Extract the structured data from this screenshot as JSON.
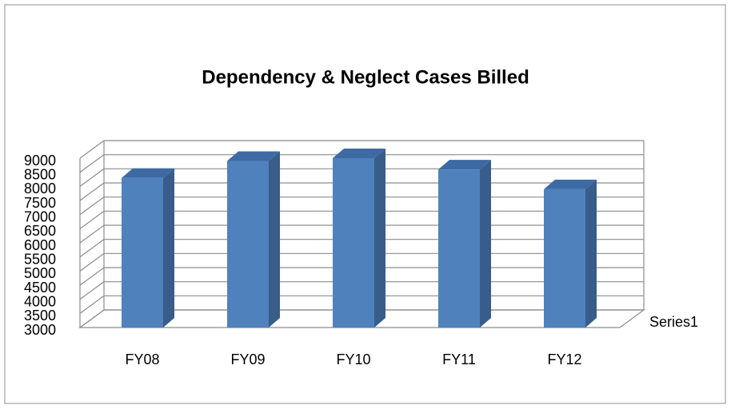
{
  "chart_data": {
    "type": "bar3d",
    "title": "Dependency & Neglect Cases Billed",
    "categories": [
      "FY08",
      "FY09",
      "FY10",
      "FY11",
      "FY12"
    ],
    "series": [
      {
        "name": "Series1",
        "color": "#4f81bd",
        "values": [
          8300,
          8900,
          9000,
          8600,
          7900
        ]
      }
    ],
    "ylim": [
      3000,
      9000
    ],
    "yticks": [
      3000,
      3500,
      4000,
      4500,
      5000,
      5500,
      6000,
      6500,
      7000,
      7500,
      8000,
      8500,
      9000
    ],
    "grid": true,
    "legend": "right"
  }
}
